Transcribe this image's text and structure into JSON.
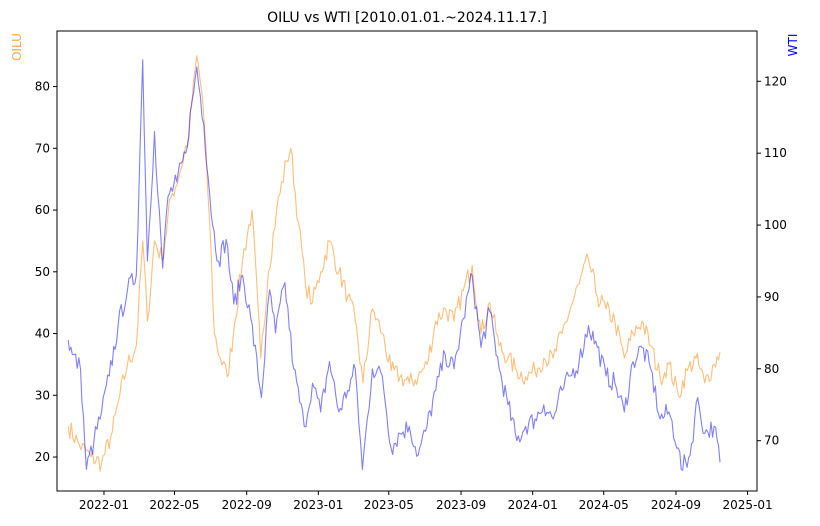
{
  "chart_data": {
    "type": "line",
    "title": "OILU vs WTI [2010.01.01.~2024.11.17.]",
    "ylabel_left": "OILU",
    "ylabel_right": "WTI",
    "colors": {
      "oilu": "#ffa94d",
      "wti": "#0000ff"
    },
    "x_ticks": [
      "2022-01",
      "2022-05",
      "2022-09",
      "2023-01",
      "2023-05",
      "2023-09",
      "2024-01",
      "2024-05",
      "2024-09",
      "2025-01"
    ],
    "xlim": [
      "2021-10-13",
      "2025-01-17"
    ],
    "ylim_left": [
      14.5,
      89
    ],
    "ylim_right": [
      63,
      127
    ],
    "y_ticks_left": [
      20,
      30,
      40,
      50,
      60,
      70,
      80
    ],
    "y_ticks_right": [
      70,
      80,
      90,
      100,
      110,
      120
    ],
    "series": [
      {
        "name": "OILU",
        "axis": "left",
        "points": [
          [
            "2021-11-01",
            25
          ],
          [
            "2021-11-20",
            22
          ],
          [
            "2021-12-10",
            20
          ],
          [
            "2021-12-28",
            19
          ],
          [
            "2022-01-15",
            24
          ],
          [
            "2022-01-28",
            30
          ],
          [
            "2022-02-10",
            35
          ],
          [
            "2022-02-25",
            38
          ],
          [
            "2022-03-08",
            55
          ],
          [
            "2022-03-16",
            42
          ],
          [
            "2022-03-28",
            55
          ],
          [
            "2022-04-10",
            52
          ],
          [
            "2022-04-25",
            62
          ],
          [
            "2022-05-10",
            66
          ],
          [
            "2022-05-25",
            72
          ],
          [
            "2022-06-08",
            85
          ],
          [
            "2022-06-18",
            78
          ],
          [
            "2022-06-30",
            58
          ],
          [
            "2022-07-08",
            40
          ],
          [
            "2022-07-18",
            36
          ],
          [
            "2022-07-30",
            33
          ],
          [
            "2022-08-12",
            42
          ],
          [
            "2022-08-25",
            52
          ],
          [
            "2022-09-10",
            60
          ],
          [
            "2022-09-25",
            36
          ],
          [
            "2022-10-08",
            50
          ],
          [
            "2022-10-22",
            60
          ],
          [
            "2022-11-08",
            68
          ],
          [
            "2022-11-15",
            70
          ],
          [
            "2022-11-28",
            58
          ],
          [
            "2022-12-10",
            48
          ],
          [
            "2022-12-22",
            45
          ],
          [
            "2023-01-05",
            50
          ],
          [
            "2023-01-20",
            55
          ],
          [
            "2023-02-05",
            50
          ],
          [
            "2023-02-20",
            46
          ],
          [
            "2023-03-05",
            42
          ],
          [
            "2023-03-18",
            32
          ],
          [
            "2023-04-03",
            44
          ],
          [
            "2023-04-20",
            40
          ],
          [
            "2023-05-05",
            34
          ],
          [
            "2023-05-20",
            33
          ],
          [
            "2023-06-05",
            32
          ],
          [
            "2023-06-20",
            33
          ],
          [
            "2023-07-05",
            35
          ],
          [
            "2023-07-20",
            42
          ],
          [
            "2023-08-05",
            44
          ],
          [
            "2023-08-20",
            42
          ],
          [
            "2023-09-05",
            47
          ],
          [
            "2023-09-20",
            51
          ],
          [
            "2023-10-05",
            40
          ],
          [
            "2023-10-20",
            45
          ],
          [
            "2023-11-05",
            38
          ],
          [
            "2023-11-20",
            36
          ],
          [
            "2023-12-05",
            34
          ],
          [
            "2023-12-20",
            33
          ],
          [
            "2024-01-05",
            34
          ],
          [
            "2024-01-20",
            36
          ],
          [
            "2024-02-05",
            36
          ],
          [
            "2024-02-20",
            40
          ],
          [
            "2024-03-05",
            44
          ],
          [
            "2024-03-20",
            48
          ],
          [
            "2024-04-05",
            52
          ],
          [
            "2024-04-20",
            46
          ],
          [
            "2024-05-05",
            44
          ],
          [
            "2024-05-20",
            42
          ],
          [
            "2024-06-05",
            36
          ],
          [
            "2024-06-20",
            40
          ],
          [
            "2024-07-05",
            42
          ],
          [
            "2024-07-20",
            38
          ],
          [
            "2024-08-05",
            33
          ],
          [
            "2024-08-20",
            35
          ],
          [
            "2024-09-05",
            30
          ],
          [
            "2024-09-20",
            34
          ],
          [
            "2024-10-05",
            36
          ],
          [
            "2024-10-20",
            32
          ],
          [
            "2024-11-05",
            35
          ],
          [
            "2024-11-15",
            37
          ]
        ]
      },
      {
        "name": "WTI",
        "axis": "right",
        "points": [
          [
            "2021-11-01",
            84
          ],
          [
            "2021-11-08",
            82
          ],
          [
            "2021-11-22",
            80
          ],
          [
            "2021-12-02",
            66
          ],
          [
            "2021-12-15",
            70
          ],
          [
            "2021-12-28",
            74
          ],
          [
            "2022-01-10",
            79
          ],
          [
            "2022-01-25",
            86
          ],
          [
            "2022-02-10",
            91
          ],
          [
            "2022-02-25",
            93
          ],
          [
            "2022-03-08",
            123
          ],
          [
            "2022-03-16",
            95
          ],
          [
            "2022-03-28",
            113
          ],
          [
            "2022-04-11",
            94
          ],
          [
            "2022-04-20",
            104
          ],
          [
            "2022-05-05",
            106
          ],
          [
            "2022-05-20",
            110
          ],
          [
            "2022-06-08",
            122
          ],
          [
            "2022-06-20",
            114
          ],
          [
            "2022-07-05",
            100
          ],
          [
            "2022-07-15",
            95
          ],
          [
            "2022-07-28",
            98
          ],
          [
            "2022-08-10",
            89
          ],
          [
            "2022-08-25",
            93
          ],
          [
            "2022-09-08",
            87
          ],
          [
            "2022-09-26",
            76
          ],
          [
            "2022-10-10",
            91
          ],
          [
            "2022-10-20",
            85
          ],
          [
            "2022-11-05",
            92
          ],
          [
            "2022-11-20",
            80
          ],
          [
            "2022-12-08",
            72
          ],
          [
            "2022-12-22",
            78
          ],
          [
            "2023-01-05",
            74
          ],
          [
            "2023-01-20",
            81
          ],
          [
            "2023-02-05",
            74
          ],
          [
            "2023-02-20",
            77
          ],
          [
            "2023-03-05",
            80
          ],
          [
            "2023-03-17",
            66
          ],
          [
            "2023-04-03",
            80
          ],
          [
            "2023-04-20",
            79
          ],
          [
            "2023-05-05",
            69
          ],
          [
            "2023-05-20",
            71
          ],
          [
            "2023-06-05",
            72
          ],
          [
            "2023-06-20",
            68
          ],
          [
            "2023-07-05",
            72
          ],
          [
            "2023-07-20",
            77
          ],
          [
            "2023-08-05",
            82
          ],
          [
            "2023-08-20",
            80
          ],
          [
            "2023-09-05",
            87
          ],
          [
            "2023-09-20",
            93
          ],
          [
            "2023-10-05",
            83
          ],
          [
            "2023-10-20",
            88
          ],
          [
            "2023-11-05",
            80
          ],
          [
            "2023-11-20",
            75
          ],
          [
            "2023-12-05",
            70
          ],
          [
            "2023-12-20",
            72
          ],
          [
            "2024-01-05",
            73
          ],
          [
            "2024-01-20",
            75
          ],
          [
            "2024-02-05",
            73
          ],
          [
            "2024-02-20",
            77
          ],
          [
            "2024-03-05",
            79
          ],
          [
            "2024-03-20",
            81
          ],
          [
            "2024-04-05",
            86
          ],
          [
            "2024-04-20",
            83
          ],
          [
            "2024-05-05",
            79
          ],
          [
            "2024-05-20",
            78
          ],
          [
            "2024-06-05",
            74
          ],
          [
            "2024-06-20",
            81
          ],
          [
            "2024-07-05",
            83
          ],
          [
            "2024-07-20",
            80
          ],
          [
            "2024-08-05",
            73
          ],
          [
            "2024-08-20",
            74
          ],
          [
            "2024-09-05",
            69
          ],
          [
            "2024-09-10",
            66
          ],
          [
            "2024-09-25",
            68
          ],
          [
            "2024-10-08",
            76
          ],
          [
            "2024-10-20",
            71
          ],
          [
            "2024-11-05",
            72
          ],
          [
            "2024-11-15",
            67
          ]
        ]
      }
    ]
  }
}
